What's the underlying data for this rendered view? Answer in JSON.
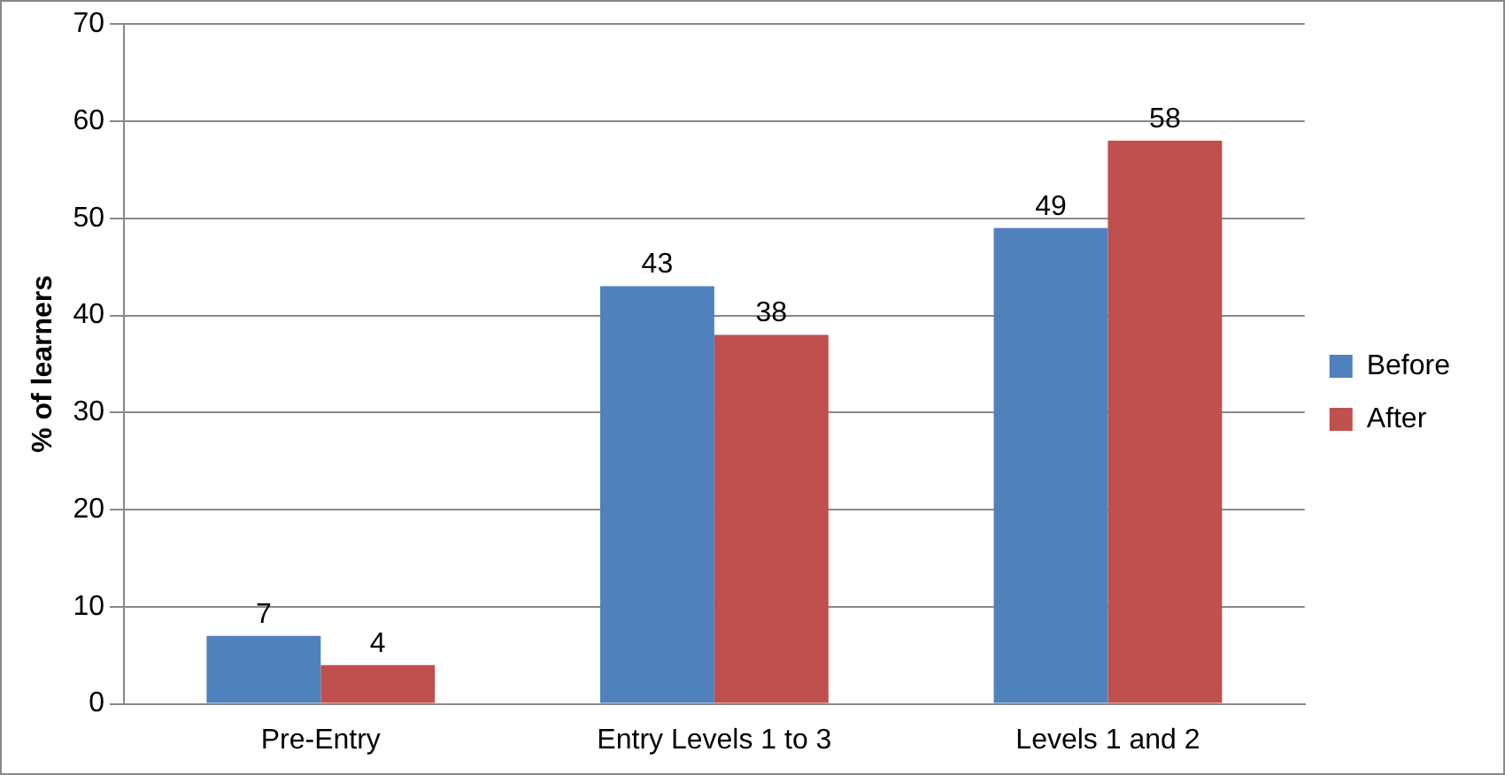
{
  "chart_data": {
    "type": "bar",
    "ylabel": "% of learners",
    "categories": [
      "Pre-Entry",
      "Entry Levels 1 to 3",
      "Levels 1 and 2"
    ],
    "series": [
      {
        "name": "Before",
        "color": "#4f81bd",
        "values": [
          7,
          43,
          49
        ]
      },
      {
        "name": "After",
        "color": "#c0504d",
        "values": [
          4,
          38,
          58
        ]
      }
    ],
    "ylim": [
      0,
      70
    ],
    "yticks": [
      0,
      10,
      20,
      30,
      40,
      50,
      60,
      70
    ],
    "grid": "y",
    "legend": "right",
    "data_labels": true
  }
}
